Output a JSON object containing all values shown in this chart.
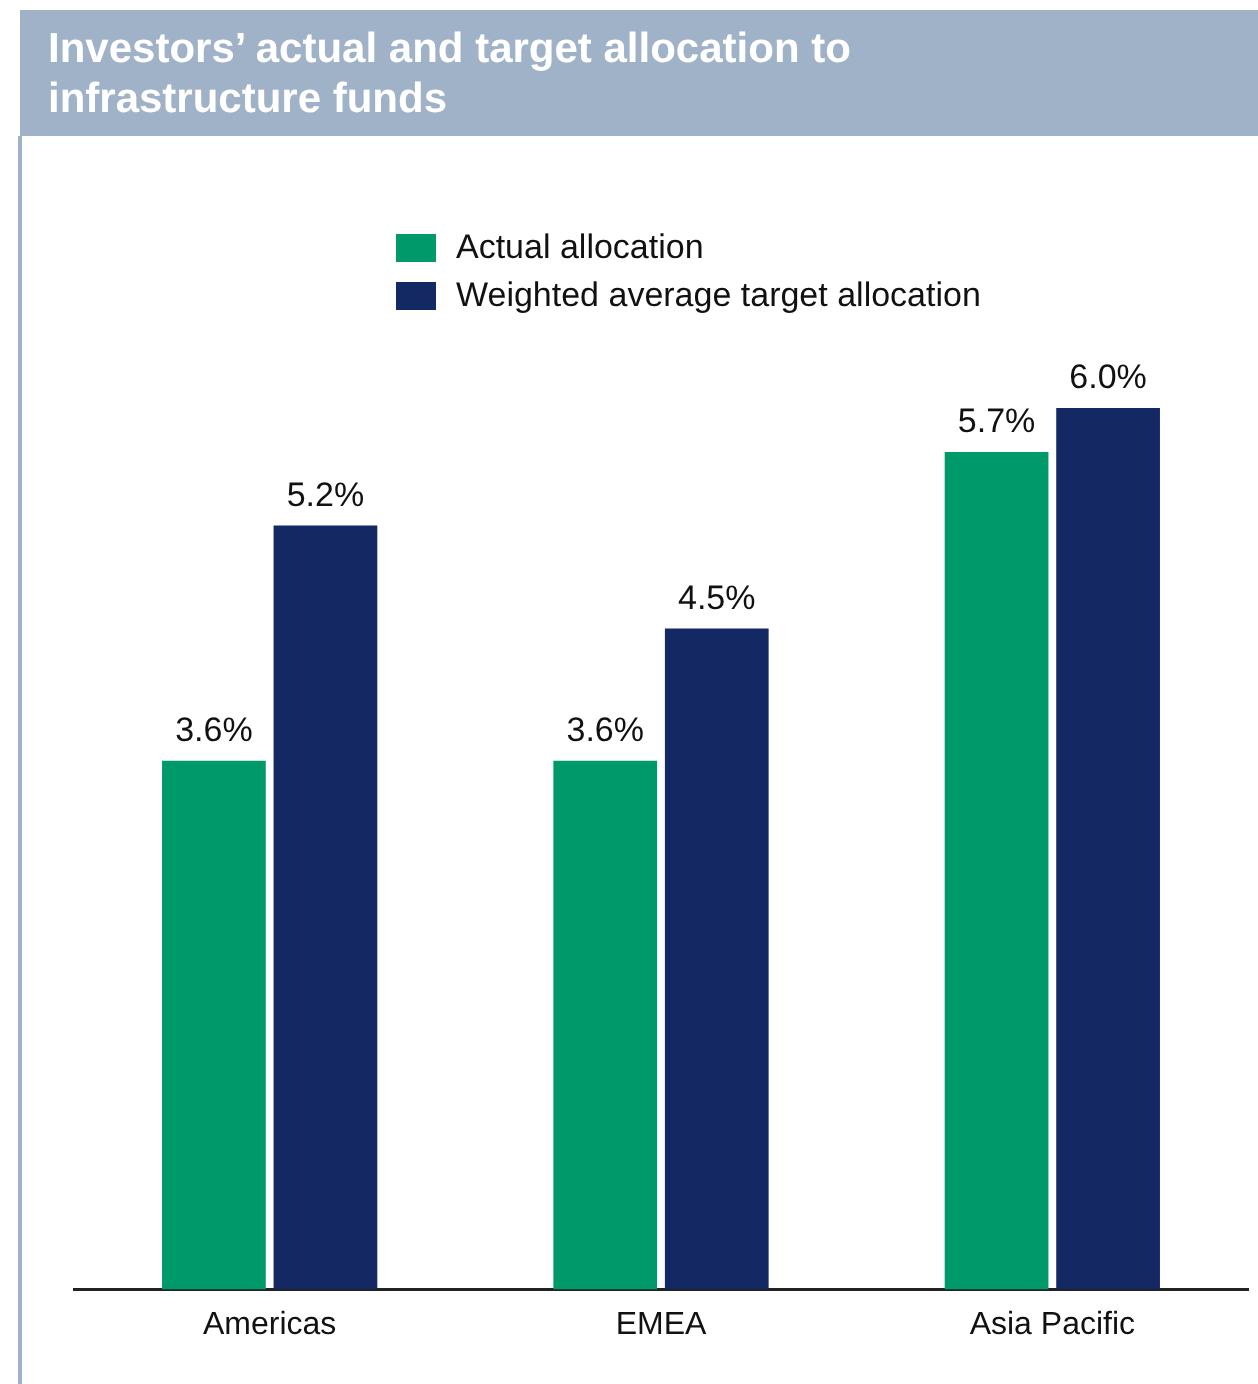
{
  "chart_data": {
    "type": "bar",
    "title": "Investors’ actual and target allocation to infrastructure funds",
    "categories": [
      "Americas",
      "EMEA",
      "Asia Pacific"
    ],
    "series": [
      {
        "name": "Actual allocation",
        "color": "#009a6a",
        "values": [
          3.6,
          3.6,
          5.7
        ],
        "value_labels": [
          "3.6%",
          "3.6%",
          "5.7%"
        ]
      },
      {
        "name": "Weighted average target allocation",
        "color": "#142864",
        "values": [
          5.2,
          4.5,
          6.0
        ],
        "value_labels": [
          "5.2%",
          "4.5%",
          "6.0%"
        ]
      }
    ],
    "ylim": [
      0,
      6
    ],
    "legend": "top",
    "tick_labels": "x"
  }
}
